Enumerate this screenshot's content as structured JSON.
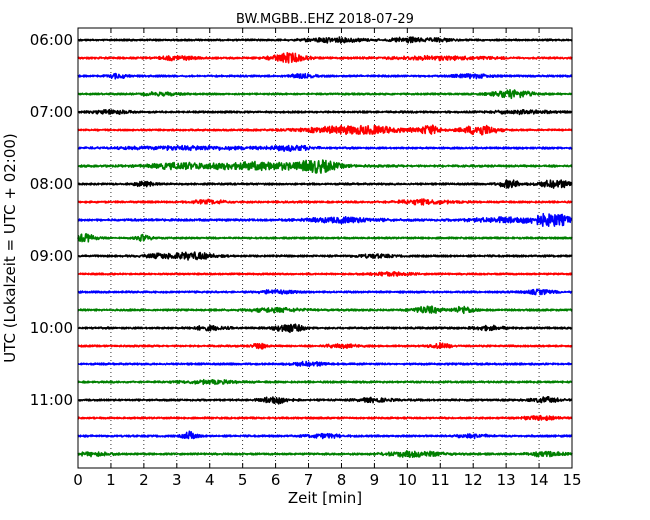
{
  "chart_data": {
    "type": "line",
    "title": "BW.MGBB..EHZ 2018-07-29",
    "xlabel": "Zeit  [min]",
    "ylabel": "UTC (Lokalzeit = UTC + 02:00)",
    "xlim": [
      0,
      15
    ],
    "x_ticks": [
      "0",
      "1",
      "2",
      "3",
      "4",
      "5",
      "6",
      "7",
      "8",
      "9",
      "10",
      "11",
      "12",
      "13",
      "14",
      "15"
    ],
    "y_ticks": [
      "06:00",
      "07:00",
      "08:00",
      "09:00",
      "10:00",
      "11:00"
    ],
    "grid": true,
    "grid_style": "dotted",
    "trace_colors": [
      "#000000",
      "#ff0000",
      "#0000ff",
      "#008000"
    ],
    "trace_interval_minutes": 15,
    "traces": [
      {
        "start": "06:00",
        "color": "#000000",
        "base": 0.3,
        "bursts": [
          [
            7.8,
            0.9,
            1.4
          ],
          [
            10.0,
            0.5,
            1.4
          ],
          [
            11.0,
            0.4,
            1.0
          ]
        ]
      },
      {
        "start": "06:15",
        "color": "#ff0000",
        "base": 0.35,
        "bursts": [
          [
            6.4,
            0.5,
            2.8
          ],
          [
            3.0,
            0.5,
            1.2
          ],
          [
            11.0,
            1.5,
            1.0
          ]
        ]
      },
      {
        "start": "06:30",
        "color": "#0000ff",
        "base": 0.35,
        "bursts": [
          [
            1.2,
            0.3,
            1.3
          ],
          [
            6.8,
            0.4,
            1.0
          ],
          [
            12.0,
            0.5,
            1.1
          ]
        ]
      },
      {
        "start": "06:45",
        "color": "#008000",
        "base": 0.3,
        "bursts": [
          [
            13.2,
            0.6,
            2.2
          ],
          [
            2.5,
            0.5,
            1.0
          ]
        ]
      },
      {
        "start": "07:00",
        "color": "#000000",
        "base": 0.35,
        "bursts": [
          [
            1.0,
            0.5,
            1.2
          ],
          [
            13.5,
            0.8,
            1.0
          ]
        ]
      },
      {
        "start": "07:15",
        "color": "#ff0000",
        "base": 0.3,
        "bursts": [
          [
            8.5,
            1.5,
            2.6
          ],
          [
            12.2,
            0.5,
            3.2
          ],
          [
            10.7,
            0.3,
            2.4
          ]
        ]
      },
      {
        "start": "07:30",
        "color": "#0000ff",
        "base": 0.35,
        "bursts": [
          [
            3.5,
            2.0,
            1.0
          ],
          [
            6.5,
            0.6,
            1.5
          ]
        ]
      },
      {
        "start": "07:45",
        "color": "#008000",
        "base": 0.4,
        "bursts": [
          [
            5.5,
            2.0,
            2.2
          ],
          [
            7.3,
            0.5,
            3.0
          ],
          [
            3.0,
            0.8,
            1.4
          ]
        ]
      },
      {
        "start": "08:00",
        "color": "#000000",
        "base": 0.35,
        "bursts": [
          [
            13.1,
            0.3,
            2.4
          ],
          [
            14.5,
            0.5,
            2.2
          ],
          [
            2.0,
            0.3,
            1.3
          ]
        ]
      },
      {
        "start": "08:15",
        "color": "#ff0000",
        "base": 0.35,
        "bursts": [
          [
            10.5,
            0.8,
            1.3
          ],
          [
            4.0,
            0.5,
            1.1
          ]
        ]
      },
      {
        "start": "08:30",
        "color": "#0000ff",
        "base": 0.45,
        "bursts": [
          [
            8.0,
            1.0,
            1.5
          ],
          [
            14.4,
            0.6,
            3.6
          ],
          [
            13.0,
            1.0,
            1.4
          ]
        ]
      },
      {
        "start": "08:45",
        "color": "#008000",
        "base": 0.3,
        "bursts": [
          [
            0.2,
            0.3,
            2.4
          ],
          [
            2.0,
            0.2,
            2.0
          ]
        ]
      },
      {
        "start": "09:00",
        "color": "#000000",
        "base": 0.35,
        "bursts": [
          [
            3.5,
            0.6,
            2.0
          ],
          [
            2.5,
            0.5,
            1.2
          ],
          [
            9.0,
            0.5,
            1.0
          ]
        ]
      },
      {
        "start": "09:15",
        "color": "#ff0000",
        "base": 0.3,
        "bursts": [
          [
            9.5,
            0.6,
            1.0
          ]
        ]
      },
      {
        "start": "09:30",
        "color": "#0000ff",
        "base": 0.35,
        "bursts": [
          [
            14.0,
            0.4,
            1.2
          ],
          [
            6.0,
            0.5,
            1.0
          ]
        ]
      },
      {
        "start": "09:45",
        "color": "#008000",
        "base": 0.35,
        "bursts": [
          [
            10.6,
            0.4,
            2.2
          ],
          [
            11.7,
            0.3,
            2.0
          ],
          [
            6.0,
            0.8,
            1.2
          ]
        ]
      },
      {
        "start": "10:00",
        "color": "#000000",
        "base": 0.35,
        "bursts": [
          [
            6.4,
            0.4,
            2.6
          ],
          [
            4.0,
            0.5,
            1.2
          ],
          [
            12.5,
            0.5,
            1.1
          ]
        ]
      },
      {
        "start": "10:15",
        "color": "#ff0000",
        "base": 0.3,
        "bursts": [
          [
            5.5,
            0.2,
            2.0
          ],
          [
            8.0,
            0.5,
            1.0
          ],
          [
            11.0,
            0.3,
            1.6
          ]
        ]
      },
      {
        "start": "10:30",
        "color": "#0000ff",
        "base": 0.35,
        "bursts": [
          [
            7.0,
            0.5,
            1.1
          ]
        ]
      },
      {
        "start": "10:45",
        "color": "#008000",
        "base": 0.35,
        "bursts": [
          [
            4.0,
            0.8,
            1.0
          ]
        ]
      },
      {
        "start": "11:00",
        "color": "#000000",
        "base": 0.35,
        "bursts": [
          [
            6.0,
            0.4,
            2.2
          ],
          [
            14.2,
            0.4,
            1.6
          ],
          [
            9.0,
            0.5,
            1.1
          ]
        ]
      },
      {
        "start": "11:15",
        "color": "#ff0000",
        "base": 0.3,
        "bursts": [
          [
            14.0,
            0.5,
            1.2
          ]
        ]
      },
      {
        "start": "11:30",
        "color": "#0000ff",
        "base": 0.35,
        "bursts": [
          [
            3.4,
            0.2,
            2.4
          ],
          [
            7.5,
            0.5,
            1.1
          ],
          [
            12.0,
            0.5,
            1.1
          ]
        ]
      },
      {
        "start": "11:45",
        "color": "#008000",
        "base": 0.35,
        "bursts": [
          [
            10.2,
            0.8,
            1.6
          ],
          [
            14.2,
            0.5,
            1.4
          ],
          [
            0.5,
            0.5,
            1.1
          ]
        ]
      }
    ]
  }
}
